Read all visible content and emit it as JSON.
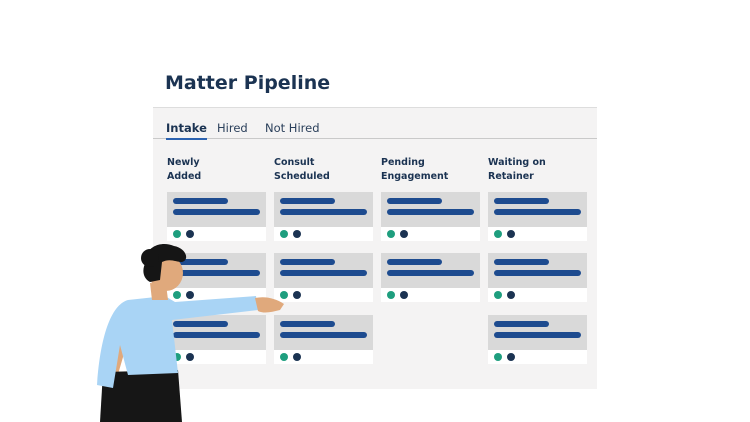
{
  "header": {
    "title": "Matter Pipeline"
  },
  "tabs": [
    "Intake",
    "Hired",
    "Not Hired"
  ],
  "active_tab": 0,
  "columns": [
    {
      "label": "Newly\nAdded"
    },
    {
      "label": "Consult\nScheduled"
    },
    {
      "label": "Pending\nEngagement"
    },
    {
      "label": "Waiting on\nRetainer"
    }
  ]
}
